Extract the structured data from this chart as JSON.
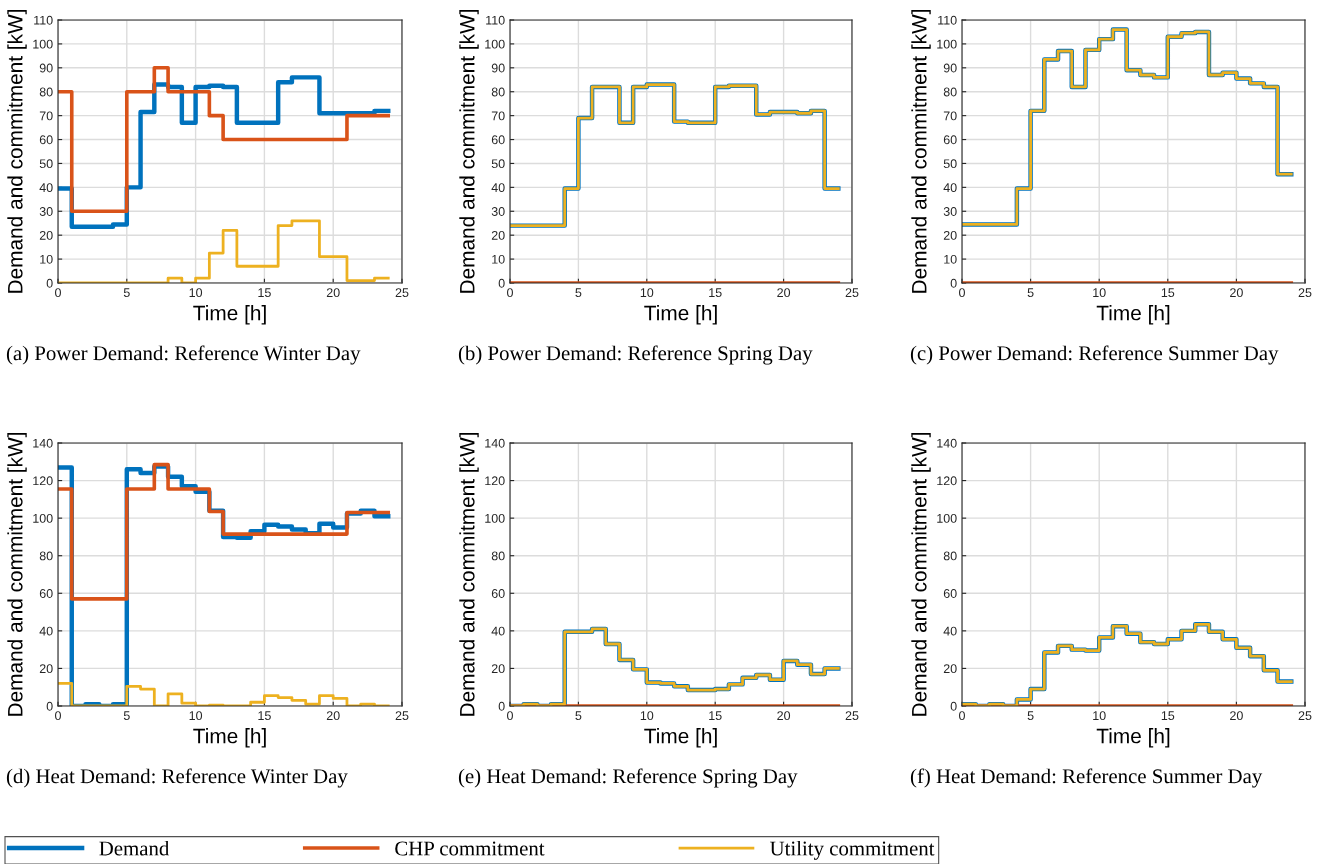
{
  "chart_data": [
    {
      "type": "step",
      "title": "(a) Power Demand: Reference Winter Day",
      "xlabel": "Time [h]",
      "ylabel": "Demand and commitment [kW]",
      "x": [
        0,
        1,
        2,
        3,
        4,
        5,
        6,
        7,
        8,
        9,
        10,
        11,
        12,
        13,
        14,
        15,
        16,
        17,
        18,
        19,
        20,
        21,
        22,
        23,
        24
      ],
      "xlim": [
        0,
        25
      ],
      "xticks": [
        0,
        5,
        10,
        15,
        20,
        25
      ],
      "ylim": [
        0,
        110
      ],
      "yticks": [
        0,
        10,
        20,
        30,
        40,
        50,
        60,
        70,
        80,
        90,
        100,
        110
      ],
      "grid": true,
      "legend": "bottom",
      "series": [
        {
          "name": "Demand",
          "color": "#0072bd",
          "values": [
            39.5,
            23.5,
            23.5,
            23.5,
            24.5,
            40,
            71.5,
            83,
            82,
            67,
            82,
            82.5,
            82,
            67,
            67,
            67,
            84,
            86,
            86,
            71,
            71,
            71,
            71,
            72,
            72
          ]
        },
        {
          "name": "CHP commitment",
          "color": "#d95319",
          "values": [
            80,
            30,
            30,
            30,
            30,
            80,
            80,
            90,
            80,
            80,
            80,
            70,
            60,
            60,
            60,
            60,
            60,
            60,
            60,
            60,
            60,
            70,
            70,
            70,
            70
          ]
        },
        {
          "name": "Utility commitment",
          "color": "#edb120",
          "values": [
            0,
            0,
            0,
            0,
            0,
            0,
            0,
            0,
            2,
            0,
            2,
            12.5,
            22,
            7,
            7,
            7,
            24,
            26,
            26,
            11,
            11,
            1,
            1,
            2,
            2
          ]
        }
      ]
    },
    {
      "type": "step",
      "title": "(b) Power Demand: Reference Spring Day",
      "xlabel": "Time [h]",
      "ylabel": "Demand and commitment [kW]",
      "x": [
        0,
        1,
        2,
        3,
        4,
        5,
        6,
        7,
        8,
        9,
        10,
        11,
        12,
        13,
        14,
        15,
        16,
        17,
        18,
        19,
        20,
        21,
        22,
        23,
        24
      ],
      "xlim": [
        0,
        25
      ],
      "xticks": [
        0,
        5,
        10,
        15,
        20,
        25
      ],
      "ylim": [
        0,
        110
      ],
      "yticks": [
        0,
        10,
        20,
        30,
        40,
        50,
        60,
        70,
        80,
        90,
        100,
        110
      ],
      "grid": true,
      "series": [
        {
          "name": "Demand",
          "color": "#0072bd",
          "values": [
            24,
            24,
            24,
            24,
            39.5,
            69,
            82,
            82,
            67,
            82,
            83,
            83,
            67.5,
            67,
            67,
            82,
            82.5,
            82.5,
            70.5,
            71.5,
            71.5,
            71,
            72,
            39.5,
            39.5
          ]
        },
        {
          "name": "CHP commitment",
          "color": "#d95319",
          "values": [
            0,
            0,
            0,
            0,
            0,
            0,
            0,
            0,
            0,
            0,
            0,
            0,
            0,
            0,
            0,
            0,
            0,
            0,
            0,
            0,
            0,
            0,
            0,
            0,
            0
          ]
        },
        {
          "name": "Utility commitment",
          "color": "#edb120",
          "values": [
            24,
            24,
            24,
            24,
            39.5,
            69,
            82,
            82,
            67,
            82,
            83,
            83,
            67.5,
            67,
            67,
            82,
            82.5,
            82.5,
            70.5,
            71.5,
            71.5,
            71,
            72,
            39.5,
            39.5
          ]
        }
      ]
    },
    {
      "type": "step",
      "title": "(c) Power Demand: Reference Summer Day",
      "xlabel": "Time [h]",
      "ylabel": "Demand and commitment [kW]",
      "x": [
        0,
        1,
        2,
        3,
        4,
        5,
        6,
        7,
        8,
        9,
        10,
        11,
        12,
        13,
        14,
        15,
        16,
        17,
        18,
        19,
        20,
        21,
        22,
        23,
        24
      ],
      "xlim": [
        0,
        25
      ],
      "xticks": [
        0,
        5,
        10,
        15,
        20,
        25
      ],
      "ylim": [
        0,
        110
      ],
      "yticks": [
        0,
        10,
        20,
        30,
        40,
        50,
        60,
        70,
        80,
        90,
        100,
        110
      ],
      "grid": true,
      "series": [
        {
          "name": "Demand",
          "color": "#0072bd",
          "values": [
            24.5,
            24.5,
            24.5,
            24.5,
            39.5,
            72,
            93.5,
            97,
            82,
            97.5,
            102,
            106,
            89,
            87,
            86,
            103,
            104.5,
            105,
            87,
            88,
            85.5,
            83.5,
            82,
            45.5,
            45.5
          ]
        },
        {
          "name": "CHP commitment",
          "color": "#d95319",
          "values": [
            0,
            0,
            0,
            0,
            0,
            0,
            0,
            0,
            0,
            0,
            0,
            0,
            0,
            0,
            0,
            0,
            0,
            0,
            0,
            0,
            0,
            0,
            0,
            0,
            0
          ]
        },
        {
          "name": "Utility commitment",
          "color": "#edb120",
          "values": [
            24.5,
            24.5,
            24.5,
            24.5,
            39.5,
            72,
            93.5,
            97,
            82,
            97.5,
            102,
            106,
            89,
            87,
            86,
            103,
            104.5,
            105,
            87,
            88,
            85.5,
            83.5,
            82,
            45.5,
            45.5
          ]
        }
      ]
    },
    {
      "type": "step",
      "title": "(d) Heat Demand: Reference Winter Day",
      "xlabel": "Time [h]",
      "ylabel": "Demand and commitment [kW]",
      "x": [
        0,
        1,
        2,
        3,
        4,
        5,
        6,
        7,
        8,
        9,
        10,
        11,
        12,
        13,
        14,
        15,
        16,
        17,
        18,
        19,
        20,
        21,
        22,
        23,
        24
      ],
      "xlim": [
        0,
        25
      ],
      "xticks": [
        0,
        5,
        10,
        15,
        20,
        25
      ],
      "ylim": [
        0,
        140
      ],
      "yticks": [
        0,
        20,
        40,
        60,
        80,
        100,
        120,
        140
      ],
      "grid": true,
      "series": [
        {
          "name": "Demand",
          "color": "#0072bd",
          "values": [
            127,
            0,
            1,
            0,
            1,
            126,
            124,
            127.5,
            122,
            117,
            114,
            104,
            90,
            89.5,
            93,
            96.5,
            95.5,
            94,
            92,
            97,
            95,
            102.5,
            104,
            101,
            101
          ]
        },
        {
          "name": "CHP commitment",
          "color": "#d95319",
          "values": [
            115.5,
            57,
            57,
            57,
            57,
            115.5,
            115.5,
            128.5,
            115.5,
            115.5,
            115.5,
            103.5,
            91.5,
            91.5,
            91.5,
            91.5,
            91.5,
            91.5,
            91.5,
            91.5,
            91.5,
            103,
            103,
            103,
            103
          ]
        },
        {
          "name": "Utility commitment",
          "color": "#edb120",
          "values": [
            12,
            0,
            0,
            0,
            0,
            10.5,
            9,
            0,
            6.5,
            1.5,
            0,
            0.5,
            0,
            0,
            2,
            5.5,
            4.5,
            3,
            1,
            5.5,
            4,
            0,
            1,
            0,
            0
          ]
        }
      ]
    },
    {
      "type": "step",
      "title": "(e) Heat Demand: Reference Spring Day",
      "xlabel": "Time [h]",
      "ylabel": "Demand and commitment [kW]",
      "x": [
        0,
        1,
        2,
        3,
        4,
        5,
        6,
        7,
        8,
        9,
        10,
        11,
        12,
        13,
        14,
        15,
        16,
        17,
        18,
        19,
        20,
        21,
        22,
        23,
        24
      ],
      "xlim": [
        0,
        25
      ],
      "xticks": [
        0,
        5,
        10,
        15,
        20,
        25
      ],
      "ylim": [
        0,
        140
      ],
      "yticks": [
        0,
        20,
        40,
        60,
        80,
        100,
        120,
        140
      ],
      "grid": true,
      "series": [
        {
          "name": "Demand",
          "color": "#0072bd",
          "values": [
            0,
            1,
            0,
            1,
            39.5,
            39.5,
            41,
            33,
            24.5,
            19.5,
            12.5,
            12,
            10.5,
            8.5,
            8.5,
            9,
            11.5,
            15,
            16.5,
            14,
            24,
            22,
            17,
            20,
            20
          ]
        },
        {
          "name": "CHP commitment",
          "color": "#d95319",
          "values": [
            0,
            0,
            0,
            0,
            0,
            0,
            0,
            0,
            0,
            0,
            0,
            0,
            0,
            0,
            0,
            0,
            0,
            0,
            0,
            0,
            0,
            0,
            0,
            0,
            0
          ]
        },
        {
          "name": "Utility commitment",
          "color": "#edb120",
          "values": [
            0,
            1,
            0,
            1,
            39.5,
            39.5,
            41,
            33,
            24.5,
            19.5,
            12.5,
            12,
            10.5,
            8.5,
            8.5,
            9,
            11.5,
            15,
            16.5,
            14,
            24,
            22,
            17,
            20,
            20
          ]
        }
      ]
    },
    {
      "type": "step",
      "title": "(f) Heat Demand: Reference Summer Day",
      "xlabel": "Time [h]",
      "ylabel": "Demand and commitment [kW]",
      "x": [
        0,
        1,
        2,
        3,
        4,
        5,
        6,
        7,
        8,
        9,
        10,
        11,
        12,
        13,
        14,
        15,
        16,
        17,
        18,
        19,
        20,
        21,
        22,
        23,
        24
      ],
      "xlim": [
        0,
        25
      ],
      "xticks": [
        0,
        5,
        10,
        15,
        20,
        25
      ],
      "ylim": [
        0,
        140
      ],
      "yticks": [
        0,
        20,
        40,
        60,
        80,
        100,
        120,
        140
      ],
      "grid": true,
      "series": [
        {
          "name": "Demand",
          "color": "#0072bd",
          "values": [
            1,
            0,
            1,
            0,
            3.5,
            9,
            28.5,
            32,
            30,
            29.5,
            36.5,
            42.5,
            38.5,
            34,
            33,
            35.5,
            40,
            43.5,
            39.5,
            35.5,
            31,
            26.5,
            19,
            13,
            13
          ]
        },
        {
          "name": "CHP commitment",
          "color": "#d95319",
          "values": [
            0,
            0,
            0,
            0,
            0,
            0,
            0,
            0,
            0,
            0,
            0,
            0,
            0,
            0,
            0,
            0,
            0,
            0,
            0,
            0,
            0,
            0,
            0,
            0,
            0
          ]
        },
        {
          "name": "Utility commitment",
          "color": "#edb120",
          "values": [
            1,
            0,
            1,
            0,
            3.5,
            9,
            28.5,
            32,
            30,
            29.5,
            36.5,
            42.5,
            38.5,
            34,
            33,
            35.5,
            40,
            43.5,
            39.5,
            35.5,
            31,
            26.5,
            19,
            13,
            13
          ]
        }
      ]
    }
  ]
}
